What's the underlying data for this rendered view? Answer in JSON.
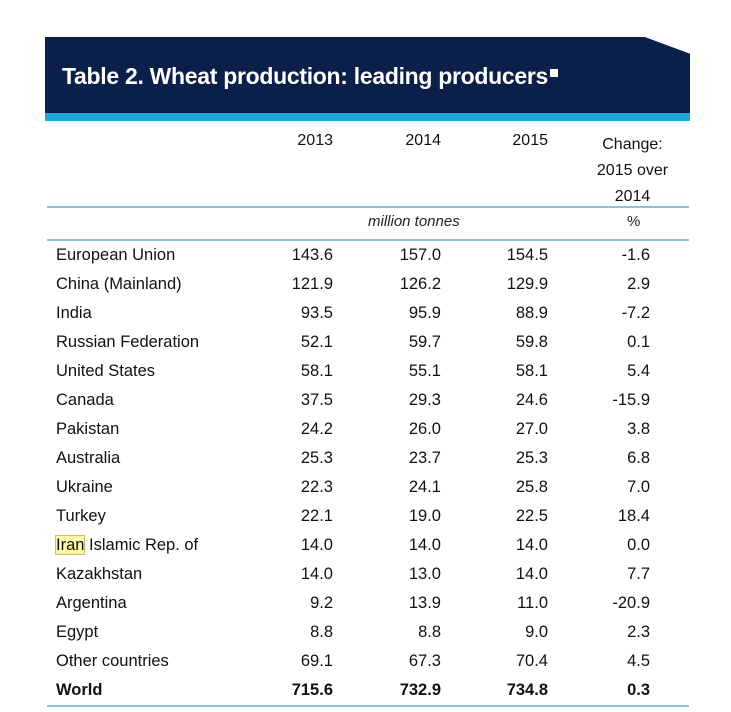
{
  "title": "Table 2. Wheat production: leading producers",
  "columns": [
    "2013",
    "2014",
    "2015"
  ],
  "change_header": [
    "Change:",
    "2015 over",
    "2014"
  ],
  "units": {
    "production": "million tonnes",
    "change": "%"
  },
  "rows": [
    {
      "label": "European Union",
      "v2013": "143.6",
      "v2014": "157.0",
      "v2015": "154.5",
      "change": "-1.6"
    },
    {
      "label": "China (Mainland)",
      "v2013": "121.9",
      "v2014": "126.2",
      "v2015": "129.9",
      "change": "2.9"
    },
    {
      "label": "India",
      "v2013": "93.5",
      "v2014": "95.9",
      "v2015": "88.9",
      "change": "-7.2"
    },
    {
      "label": "Russian Federation",
      "v2013": "52.1",
      "v2014": "59.7",
      "v2015": "59.8",
      "change": "0.1"
    },
    {
      "label": "United States",
      "v2013": "58.1",
      "v2014": "55.1",
      "v2015": "58.1",
      "change": "5.4"
    },
    {
      "label": "Canada",
      "v2013": "37.5",
      "v2014": "29.3",
      "v2015": "24.6",
      "change": "-15.9"
    },
    {
      "label": "Pakistan",
      "v2013": "24.2",
      "v2014": "26.0",
      "v2015": "27.0",
      "change": "3.8"
    },
    {
      "label": "Australia",
      "v2013": "25.3",
      "v2014": "23.7",
      "v2015": "25.3",
      "change": "6.8"
    },
    {
      "label": "Ukraine",
      "v2013": "22.3",
      "v2014": "24.1",
      "v2015": "25.8",
      "change": "7.0"
    },
    {
      "label": "Turkey",
      "v2013": "22.1",
      "v2014": "19.0",
      "v2015": "22.5",
      "change": "18.4"
    },
    {
      "label_highlight": "Iran",
      "label": " Islamic Rep. of",
      "v2013": "14.0",
      "v2014": "14.0",
      "v2015": "14.0",
      "change": "0.0"
    },
    {
      "label": "Kazakhstan",
      "v2013": "14.0",
      "v2014": "13.0",
      "v2015": "14.0",
      "change": "7.7"
    },
    {
      "label": "Argentina",
      "v2013": "9.2",
      "v2014": "13.9",
      "v2015": "11.0",
      "change": "-20.9"
    },
    {
      "label": "Egypt",
      "v2013": "8.8",
      "v2014": "8.8",
      "v2015": "9.0",
      "change": "2.3"
    },
    {
      "label": "Other countries",
      "v2013": "69.1",
      "v2014": "67.3",
      "v2015": "70.4",
      "change": "4.5"
    }
  ],
  "total": {
    "label": "World",
    "v2013": "715.6",
    "v2014": "732.9",
    "v2015": "734.8",
    "change": "0.3"
  }
}
